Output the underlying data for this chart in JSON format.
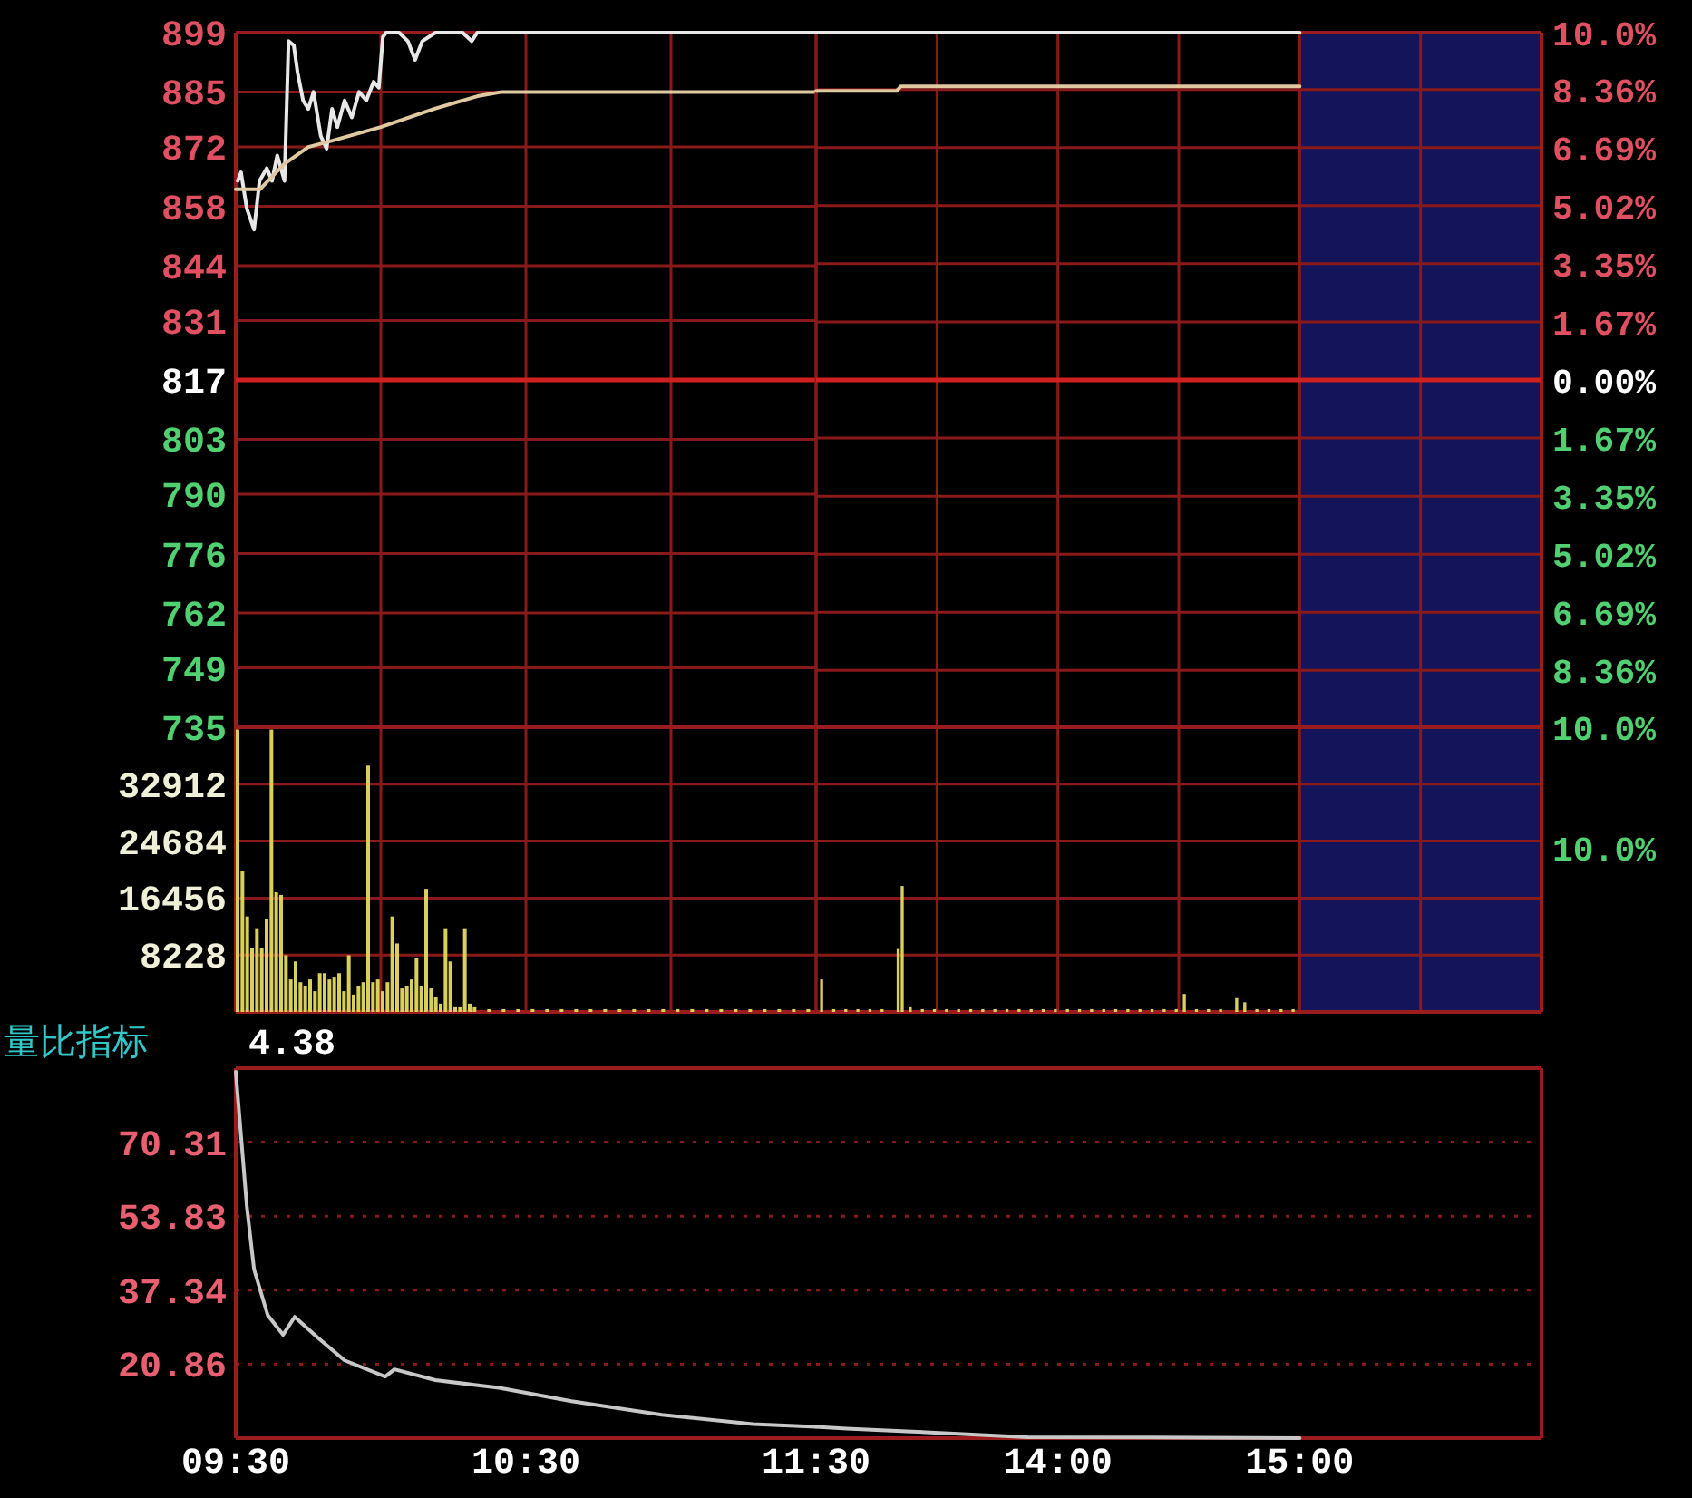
{
  "chart_data": [
    {
      "type": "line",
      "xlim": [
        9.5,
        11.5
      ],
      "xticks": [
        9.5,
        10,
        10.5,
        11,
        11.5
      ],
      "ylim": [
        735,
        899
      ],
      "yticks": [
        899,
        885,
        872,
        858,
        844,
        831,
        817,
        803,
        790,
        776,
        762,
        749,
        735
      ],
      "grid": true,
      "tick_labels": "y",
      "ref_lines": [
        {
          "axis": "y",
          "value": 817,
          "color": "#d02020"
        }
      ],
      "series": [
        {
          "color": "#e8e8e8",
          "x": [
            9.507,
            9.518,
            9.538,
            9.563,
            9.582,
            9.607,
            9.625,
            9.643,
            9.668,
            9.682,
            9.7,
            9.713,
            9.732,
            9.75,
            9.768,
            9.793,
            9.813,
            9.832,
            9.85,
            9.875,
            9.9,
            9.925,
            9.95,
            9.975,
            9.993,
            10.007,
            10.018,
            10.063,
            10.093,
            10.118,
            10.143,
            10.188,
            10.282,
            10.313,
            10.332,
            11.5
          ],
          "values": [
            864,
            866,
            857.5,
            852.5,
            864,
            867,
            864,
            870,
            864,
            897,
            896,
            889.6,
            883,
            881,
            885,
            874.6,
            871.6,
            881,
            876.7,
            883,
            879,
            885,
            883,
            887.4,
            886,
            898,
            899,
            899,
            897,
            892.6,
            897,
            899,
            899,
            897,
            899,
            899
          ]
        },
        {
          "color": "#e0c8a0",
          "x": [
            9.5,
            9.583,
            9.667,
            9.75,
            9.833,
            10,
            10.183,
            10.333,
            10.417,
            11.5
          ],
          "values": [
            862,
            862,
            868,
            872,
            873.5,
            876.7,
            881,
            884,
            885,
            885
          ]
        }
      ]
    },
    {
      "type": "line",
      "xlim": [
        13,
        16
      ],
      "xticks": [
        13,
        13.5,
        14,
        14.5,
        15,
        15.5,
        16
      ],
      "y2lim": [
        -10,
        10
      ],
      "y2ticks": [
        {
          "value": 10,
          "label": "10.0%"
        },
        {
          "value": 8.36,
          "label": "8.36%"
        },
        {
          "value": 6.69,
          "label": "6.69%"
        },
        {
          "value": 5.02,
          "label": "5.02%"
        },
        {
          "value": 3.35,
          "label": "3.35%"
        },
        {
          "value": 1.67,
          "label": "1.67%"
        },
        {
          "value": 0,
          "label": "0.00%"
        },
        {
          "value": -1.67,
          "label": "1.67%"
        },
        {
          "value": -3.35,
          "label": "3.35%"
        },
        {
          "value": -5.02,
          "label": "5.02%"
        },
        {
          "value": -6.69,
          "label": "6.69%"
        },
        {
          "value": -8.36,
          "label": "8.36%"
        },
        {
          "value": -10,
          "label": "10.0%"
        }
      ],
      "grid": true,
      "tick_labels": "y",
      "ref_lines": [
        {
          "axis": "y2",
          "value": 0,
          "color": "#d02020"
        }
      ],
      "bands": [
        {
          "axis": "x",
          "from": 15,
          "to": 16,
          "color": "#14145a"
        }
      ],
      "series": [
        {
          "color": "#e8e8e8",
          "axis": "y2",
          "x": [
            13,
            15
          ],
          "values": [
            10,
            10
          ]
        },
        {
          "color": "#e0c8a0",
          "axis": "y2",
          "x": [
            13,
            13.333,
            13.35,
            15
          ],
          "values": [
            8.32,
            8.32,
            8.45,
            8.45
          ]
        }
      ]
    },
    {
      "type": "bar",
      "xlim": [
        9.5,
        11.5
      ],
      "xticks": [
        9.5,
        10,
        10.5,
        11,
        11.5
      ],
      "ylim": [
        0,
        41140
      ],
      "yticks": [
        8228,
        16456,
        24684,
        32912
      ],
      "grid": true,
      "tick_labels": "y",
      "color": "#d8cf5c",
      "x": [
        9.5,
        9.5167,
        9.5333,
        9.55,
        9.5667,
        9.5833,
        9.6,
        9.6167,
        9.6333,
        9.65,
        9.6667,
        9.6833,
        9.7,
        9.7167,
        9.7333,
        9.75,
        9.7667,
        9.7833,
        9.8,
        9.8167,
        9.8333,
        9.85,
        9.8667,
        9.8833,
        9.9,
        9.9167,
        9.9333,
        9.95,
        9.9667,
        9.9833,
        10,
        10.0167,
        10.0333,
        10.05,
        10.0667,
        10.0833,
        10.1,
        10.1167,
        10.1333,
        10.15,
        10.1667,
        10.1833,
        10.2,
        10.2167,
        10.2333,
        10.25,
        10.2667,
        10.2833,
        10.3,
        10.3167,
        10.3667,
        10.4167,
        10.4667,
        10.5167,
        10.5667,
        10.6167,
        10.6667,
        10.7167,
        10.7667,
        10.8167,
        10.8667,
        10.9167,
        10.9667,
        11.0167,
        11.0667,
        11.1167,
        11.1667,
        11.2167,
        11.2667,
        11.3167,
        11.3667,
        11.4167,
        11.4667
      ],
      "values": [
        40800,
        20400,
        13800,
        9200,
        12100,
        9200,
        13400,
        40800,
        17300,
        16900,
        8200,
        4700,
        7300,
        4300,
        3800,
        4700,
        3000,
        5600,
        5600,
        4700,
        5100,
        5600,
        3000,
        8200,
        2500,
        3800,
        4300,
        35600,
        4300,
        4700,
        3000,
        4300,
        13800,
        9900,
        3400,
        3800,
        4700,
        7800,
        3800,
        17800,
        3400,
        2100,
        1200,
        12100,
        7300,
        800,
        800,
        12100,
        1200,
        800,
        400,
        400,
        400,
        400,
        400,
        400,
        400,
        400,
        400,
        400,
        400,
        400,
        400,
        400,
        400,
        400,
        400,
        400,
        400,
        400,
        400,
        400,
        400
      ]
    },
    {
      "type": "bar",
      "xlim": [
        13,
        16
      ],
      "xticks": [
        13,
        13.5,
        14,
        14.5,
        15,
        15.5,
        16
      ],
      "ylim": [
        0,
        41140
      ],
      "yticks": [
        {
          "value": 8228,
          "label": null
        },
        {
          "value": 16456,
          "label": null
        },
        {
          "value": 24684,
          "label": null
        },
        {
          "value": 32912,
          "label": null
        }
      ],
      "grid": true,
      "tick_labels": false,
      "bands": [
        {
          "axis": "x",
          "from": 15,
          "to": 16,
          "color": "#14145a"
        }
      ],
      "annotations": [
        "10.0%"
      ],
      "color": "#d8cf5c",
      "x": [
        13.0167,
        13.0667,
        13.1167,
        13.1667,
        13.2167,
        13.2667,
        13.3333,
        13.35,
        13.3833,
        13.4333,
        13.4833,
        13.5333,
        13.5833,
        13.6333,
        13.6833,
        13.7333,
        13.7833,
        13.8333,
        13.8833,
        13.9333,
        13.9833,
        14.0333,
        14.0833,
        14.1333,
        14.1833,
        14.2333,
        14.2833,
        14.3333,
        14.3833,
        14.4333,
        14.4833,
        14.5167,
        14.5667,
        14.6167,
        14.6667,
        14.7333,
        14.7667,
        14.8167,
        14.8667,
        14.9167,
        14.9667
      ],
      "values": [
        4700,
        400,
        400,
        400,
        400,
        400,
        9100,
        18200,
        800,
        400,
        400,
        400,
        400,
        400,
        400,
        400,
        400,
        400,
        400,
        400,
        400,
        400,
        400,
        400,
        400,
        400,
        400,
        400,
        400,
        400,
        400,
        2600,
        400,
        400,
        400,
        2000,
        1400,
        400,
        400,
        400,
        400
      ]
    },
    {
      "type": "line",
      "title": "量比指标",
      "annotations": [
        "4.38"
      ],
      "xlim": [
        9.5,
        11.5
      ],
      "xticks": [
        {
          "value": 9.5,
          "label": "09:30"
        },
        {
          "value": 10.5,
          "label": "10:30"
        },
        {
          "value": 11.5,
          "label": "11:30"
        }
      ],
      "ylim": [
        4.38,
        86.79
      ],
      "yticks": [
        20.86,
        37.34,
        53.83,
        70.31
      ],
      "grid": "y",
      "series": [
        {
          "color": "#c8c8c8",
          "x": [
            9.5,
            9.538,
            9.563,
            9.61,
            9.663,
            9.703,
            9.782,
            9.875,
            10.015,
            10.047,
            10.188,
            10.407,
            10.657,
            10.968,
            11.282,
            11.5
          ],
          "values": [
            86,
            56.1,
            42,
            31.8,
            27.4,
            31.4,
            26.8,
            21.7,
            18.1,
            19.7,
            17.3,
            15.6,
            12.6,
            9.6,
            7.5,
            6.9
          ]
        }
      ]
    },
    {
      "type": "line",
      "xlim": [
        13,
        16
      ],
      "xticks": [
        {
          "value": 14,
          "label": "14:00"
        },
        {
          "value": 15,
          "label": "15:00"
        }
      ],
      "ylim": [
        4.38,
        86.79
      ],
      "yticks": [
        {
          "value": 20.86,
          "label": null
        },
        {
          "value": 37.34,
          "label": null
        },
        {
          "value": 53.83,
          "label": null
        },
        {
          "value": 70.31,
          "label": null
        }
      ],
      "grid": "y",
      "tick_labels": "x",
      "series": [
        {
          "color": "#c8c8c8",
          "x": [
            13,
            13.125,
            13.375,
            13.875,
            15
          ],
          "values": [
            6.9,
            6.5,
            5.9,
            4.6,
            4.4
          ]
        }
      ]
    }
  ]
}
